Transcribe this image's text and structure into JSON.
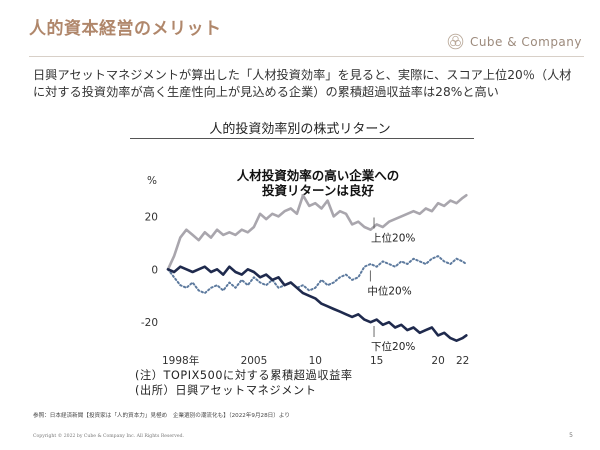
{
  "slide": {
    "title": "人的資本経営のメリット",
    "brand": "Cube & Company",
    "brand_icon": "cube-company-logo-icon",
    "lead": "日興アセットマネジメントが算出した「人材投資効率」を見ると、実際に、スコア上位20％（人材に対する投資効率が高く生産性向上が見込める企業）の累積超過収益率は28%と高い",
    "chart_heading": "人的投資効率別の株式リターン",
    "note_line1": "(注）TOPIX500に対する累積超過収益率",
    "note_line2": "(出所）日興アセットマネジメント",
    "source": "参照：日本経済新聞【投資家は「人的資本力」見極め　企業選別の潮流化も】（2022年9月28日）より",
    "copyright": "Copyright © 2022 by Cube & Company Inc. All Rights Reserved.",
    "page_number": "5"
  },
  "chart_data": {
    "type": "line",
    "title": "人材投資効率の高い企業への\n投資リターンは良好",
    "title_lines": [
      "人材投資効率の高い企業への",
      "投資リターンは良好"
    ],
    "y_unit": "%",
    "ylim": [
      -29,
      30
    ],
    "yticks": [
      20,
      0,
      -20
    ],
    "xlim": [
      1998,
      2022.6
    ],
    "xticks": [
      {
        "value": 1998,
        "label": "1998年"
      },
      {
        "value": 2005,
        "label": "2005"
      },
      {
        "value": 2010,
        "label": "10"
      },
      {
        "value": 2015,
        "label": "15"
      },
      {
        "value": 2020,
        "label": "20"
      },
      {
        "value": 2022,
        "label": "22"
      }
    ],
    "grid": false,
    "series": [
      {
        "name": "上位20%",
        "color": "#a9a6ad",
        "style": "solid",
        "x": [
          1998,
          1998.5,
          1999,
          1999.5,
          2000,
          2000.5,
          2001,
          2001.5,
          2002,
          2002.5,
          2003,
          2003.5,
          2004,
          2004.5,
          2005,
          2005.5,
          2006,
          2006.5,
          2007,
          2007.5,
          2008,
          2008.5,
          2009,
          2009.5,
          2010,
          2010.5,
          2011,
          2011.5,
          2012,
          2012.5,
          2013,
          2013.5,
          2014,
          2014.5,
          2015,
          2015.5,
          2016,
          2016.5,
          2017,
          2017.5,
          2018,
          2018.5,
          2019,
          2019.5,
          2020,
          2020.5,
          2021,
          2021.5,
          2022,
          2022.3
        ],
        "y": [
          0,
          5,
          12,
          15,
          13,
          11,
          14,
          12,
          15,
          13,
          14,
          13,
          15,
          14,
          16,
          21,
          19,
          21,
          20,
          22,
          23,
          21,
          28,
          24,
          25,
          23,
          26,
          20,
          22,
          21,
          17,
          18,
          16,
          15,
          17,
          16,
          18,
          19,
          20,
          21,
          22,
          21,
          23,
          22,
          25,
          24,
          26,
          25,
          27,
          28
        ]
      },
      {
        "name": "中位20%",
        "color": "#5d7a9e",
        "style": "dotted",
        "x": [
          1998,
          1998.5,
          1999,
          1999.5,
          2000,
          2000.5,
          2001,
          2001.5,
          2002,
          2002.5,
          2003,
          2003.5,
          2004,
          2004.5,
          2005,
          2005.5,
          2006,
          2006.5,
          2007,
          2007.5,
          2008,
          2008.5,
          2009,
          2009.5,
          2010,
          2010.5,
          2011,
          2011.5,
          2012,
          2012.5,
          2013,
          2013.5,
          2014,
          2014.5,
          2015,
          2015.5,
          2016,
          2016.5,
          2017,
          2017.5,
          2018,
          2018.5,
          2019,
          2019.5,
          2020,
          2020.5,
          2021,
          2021.5,
          2022,
          2022.3
        ],
        "y": [
          0,
          -3,
          -6,
          -7,
          -5,
          -8,
          -9,
          -7,
          -6,
          -8,
          -5,
          -7,
          -4,
          -6,
          -3,
          -5,
          -6,
          -4,
          -7,
          -6,
          -5,
          -7,
          -6,
          -8,
          -7,
          -4,
          -6,
          -5,
          -3,
          -2,
          -4,
          -3,
          1,
          2,
          1,
          3,
          2,
          1,
          3,
          2,
          4,
          3,
          2,
          4,
          5,
          3,
          2,
          4,
          3,
          2
        ]
      },
      {
        "name": "下位20%",
        "color": "#1f2a4d",
        "style": "solid",
        "x": [
          1998,
          1998.5,
          1999,
          1999.5,
          2000,
          2000.5,
          2001,
          2001.5,
          2002,
          2002.5,
          2003,
          2003.5,
          2004,
          2004.5,
          2005,
          2005.5,
          2006,
          2006.5,
          2007,
          2007.5,
          2008,
          2008.5,
          2009,
          2009.5,
          2010,
          2010.5,
          2011,
          2011.5,
          2012,
          2012.5,
          2013,
          2013.5,
          2014,
          2014.5,
          2015,
          2015.5,
          2016,
          2016.5,
          2017,
          2017.5,
          2018,
          2018.5,
          2019,
          2019.5,
          2020,
          2020.5,
          2021,
          2021.5,
          2022,
          2022.3
        ],
        "y": [
          0,
          -1,
          1,
          0,
          -1,
          0,
          1,
          -1,
          0,
          -2,
          1,
          -1,
          -2,
          0,
          -1,
          -3,
          -2,
          -4,
          -3,
          -6,
          -5,
          -7,
          -9,
          -10,
          -11,
          -13,
          -14,
          -15,
          -16,
          -17,
          -18,
          -17,
          -19,
          -20,
          -19,
          -21,
          -20,
          -22,
          -21,
          -23,
          -22,
          -24,
          -23,
          -22,
          -25,
          -24,
          -26,
          -27,
          -26,
          -25
        ]
      }
    ],
    "series_labels": [
      {
        "text": "上位20%",
        "x": 2014.7,
        "y": 10.5
      },
      {
        "text": "中位20%",
        "x": 2014.4,
        "y": -9.5
      },
      {
        "text": "下位20%",
        "x": 2014.7,
        "y": -30.5
      }
    ]
  }
}
